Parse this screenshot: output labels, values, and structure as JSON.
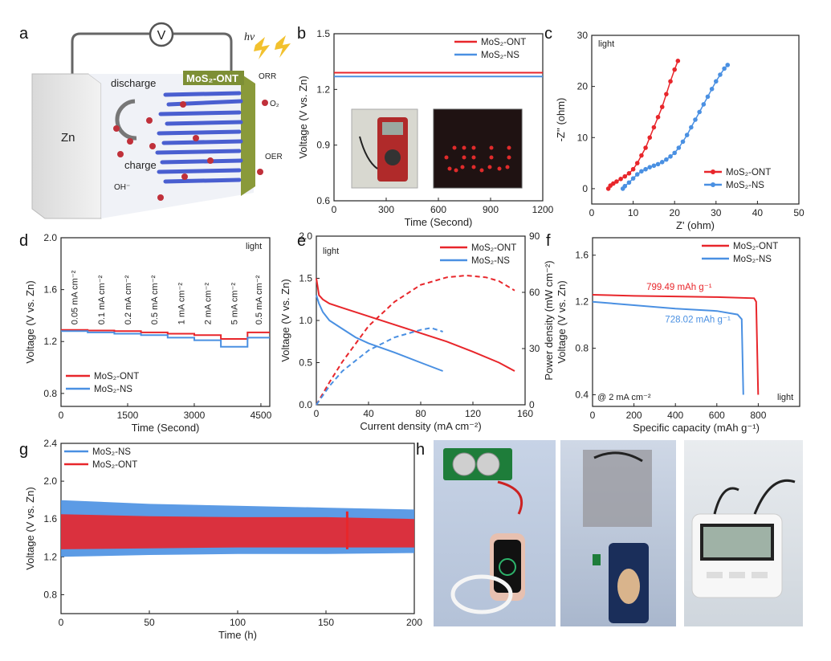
{
  "colors": {
    "ont": "#e8262b",
    "ns": "#4a90e2",
    "axis": "#222222"
  },
  "panels": {
    "a": {
      "letter": "a",
      "voltmeter": "V",
      "zn": "Zn",
      "electrode": "MoS₂-ONT",
      "light": "hν",
      "discharge": "discharge",
      "charge": "charge",
      "orr": "ORR",
      "oer": "OER",
      "o2": "O₂",
      "oh": "OH⁻"
    },
    "b": {
      "letter": "b"
    },
    "c": {
      "letter": "c"
    },
    "d": {
      "letter": "d"
    },
    "e": {
      "letter": "e"
    },
    "f": {
      "letter": "f"
    },
    "g": {
      "letter": "g"
    },
    "h": {
      "letter": "h"
    }
  },
  "chart_data": [
    {
      "id": "b",
      "type": "line",
      "xlabel": "Time (Second)",
      "ylabel": "Voltage (V vs. Zn)",
      "xlim": [
        0,
        1200
      ],
      "ylim": [
        0.6,
        1.5
      ],
      "xticks": [
        0,
        300,
        600,
        900,
        1200
      ],
      "yticks": [
        0.6,
        0.9,
        1.2,
        1.5
      ],
      "legend_position": "top-right",
      "series": [
        {
          "name": "MoS₂-ONT",
          "color": "#e8262b",
          "x": [
            0,
            1200
          ],
          "y": [
            1.29,
            1.29
          ]
        },
        {
          "name": "MoS₂-NS",
          "color": "#4a90e2",
          "x": [
            0,
            1200
          ],
          "y": [
            1.27,
            1.27
          ]
        }
      ]
    },
    {
      "id": "c",
      "type": "scatter",
      "xlabel": "Z' (ohm)",
      "ylabel": "-Z'' (ohm)",
      "xlim": [
        0,
        50
      ],
      "ylim": [
        -3,
        30
      ],
      "xticks": [
        0,
        10,
        20,
        30,
        40,
        50
      ],
      "yticks": [
        0,
        10,
        20,
        30
      ],
      "annotation": "light",
      "legend_position": "bottom-right",
      "series": [
        {
          "name": "MoS₂-ONT",
          "color": "#e8262b",
          "x": [
            4.0,
            4.5,
            5.2,
            6.0,
            7.0,
            8.0,
            9.0,
            10.0,
            11.0,
            12.0,
            13.0,
            14.0,
            15.0,
            16.0,
            17.0,
            18.0,
            19.0,
            20.0,
            20.8
          ],
          "y": [
            0.0,
            0.6,
            1.0,
            1.4,
            1.9,
            2.4,
            3.0,
            3.8,
            5.0,
            6.5,
            8.0,
            10.0,
            12.0,
            14.0,
            16.0,
            18.5,
            21.0,
            23.3,
            25.0
          ]
        },
        {
          "name": "MoS₂-NS",
          "color": "#4a90e2",
          "x": [
            7.5,
            8.0,
            9.0,
            10.0,
            11.0,
            12.0,
            13.0,
            14.0,
            15.0,
            16.0,
            17.0,
            18.0,
            19.0,
            20.0,
            21.0,
            22.0,
            23.0,
            24.0,
            25.0,
            26.0,
            27.0,
            28.0,
            29.0,
            30.0,
            31.0,
            32.0,
            32.8
          ],
          "y": [
            0.0,
            0.5,
            1.2,
            2.0,
            2.8,
            3.4,
            3.8,
            4.2,
            4.5,
            4.8,
            5.2,
            5.7,
            6.3,
            7.0,
            8.0,
            9.2,
            10.5,
            12.0,
            13.5,
            15.0,
            16.5,
            18.0,
            19.5,
            21.0,
            22.3,
            23.5,
            24.2
          ]
        }
      ]
    },
    {
      "id": "d",
      "type": "line",
      "xlabel": "Time (Second)",
      "ylabel": "Voltage (V vs. Zn)",
      "xlim": [
        0,
        4700
      ],
      "ylim": [
        0.7,
        2.0
      ],
      "xticks": [
        0,
        1500,
        3000,
        4500
      ],
      "yticks": [
        0.8,
        1.2,
        1.6,
        2.0
      ],
      "annotation": "light",
      "legend_position": "bottom-left",
      "current_labels": [
        "0.05 mA cm⁻²",
        "0.1 mA cm⁻²",
        "0.2 mA cm⁻²",
        "0.5 mA cm⁻²",
        "1 mA cm⁻²",
        "2 mA cm⁻²",
        "5 mA cm⁻²",
        "0.5 mA cm⁻²"
      ],
      "series": [
        {
          "name": "MoS₂-ONT",
          "color": "#e8262b",
          "x": [
            0,
            600,
            600,
            1200,
            1200,
            1800,
            1800,
            2400,
            2400,
            3000,
            3000,
            3600,
            3600,
            4200,
            4200,
            4700
          ],
          "y": [
            1.29,
            1.29,
            1.285,
            1.285,
            1.28,
            1.28,
            1.27,
            1.27,
            1.26,
            1.26,
            1.25,
            1.25,
            1.22,
            1.22,
            1.27,
            1.27
          ]
        },
        {
          "name": "MoS₂-NS",
          "color": "#4a90e2",
          "x": [
            0,
            600,
            600,
            1200,
            1200,
            1800,
            1800,
            2400,
            2400,
            3000,
            3000,
            3600,
            3600,
            4200,
            4200,
            4700
          ],
          "y": [
            1.28,
            1.28,
            1.27,
            1.27,
            1.26,
            1.26,
            1.25,
            1.25,
            1.23,
            1.23,
            1.21,
            1.21,
            1.16,
            1.16,
            1.23,
            1.23
          ]
        }
      ]
    },
    {
      "id": "e",
      "type": "line",
      "xlabel": "Current density (mA cm⁻²)",
      "ylabel": "Voltage (V vs. Zn)",
      "ylabel_right": "Power density (mW cm⁻²)",
      "xlim": [
        0,
        160
      ],
      "ylim": [
        0,
        2.0
      ],
      "ylim_right": [
        0,
        90
      ],
      "xticks": [
        0,
        40,
        80,
        120,
        160
      ],
      "yticks": [
        0.0,
        0.5,
        1.0,
        1.5,
        2.0
      ],
      "yticks_right": [
        0,
        30,
        60,
        90
      ],
      "annotation": "light",
      "legend_position": "top-right",
      "series": [
        {
          "name": "MoS₂-ONT",
          "color": "#e8262b",
          "axis": "left",
          "x": [
            0,
            2,
            5,
            10,
            20,
            40,
            60,
            80,
            100,
            120,
            140,
            152
          ],
          "y": [
            1.5,
            1.3,
            1.25,
            1.2,
            1.15,
            1.05,
            0.95,
            0.85,
            0.75,
            0.63,
            0.5,
            0.4
          ]
        },
        {
          "name": "MoS₂-NS",
          "color": "#4a90e2",
          "axis": "left",
          "x": [
            0,
            2,
            5,
            10,
            20,
            30,
            40,
            60,
            80,
            97
          ],
          "y": [
            1.3,
            1.2,
            1.1,
            1.0,
            0.9,
            0.8,
            0.73,
            0.62,
            0.5,
            0.4
          ]
        },
        {
          "name": "",
          "color": "#e8262b",
          "axis": "right",
          "dashed": true,
          "x": [
            0,
            10,
            20,
            40,
            60,
            80,
            100,
            115,
            130,
            140,
            152
          ],
          "y": [
            0,
            12,
            23,
            42,
            55,
            64,
            68,
            69,
            68,
            66,
            61
          ]
        },
        {
          "name": "",
          "color": "#4a90e2",
          "axis": "right",
          "dashed": true,
          "x": [
            0,
            10,
            20,
            40,
            60,
            80,
            88,
            97
          ],
          "y": [
            0,
            10,
            18,
            29,
            36,
            40,
            41,
            39
          ]
        }
      ]
    },
    {
      "id": "f",
      "type": "line",
      "xlabel": "Specific capacity (mAh g⁻¹)",
      "ylabel": "Voltage (V vs. Zn)",
      "xlim": [
        0,
        1000
      ],
      "ylim": [
        0.3,
        1.75
      ],
      "xticks": [
        0,
        200,
        400,
        600,
        800
      ],
      "yticks": [
        0.4,
        0.8,
        1.2,
        1.6
      ],
      "annotations": [
        "799.49 mAh g⁻¹",
        "728.02 mAh g⁻¹",
        "@ 2 mA cm⁻²",
        "light"
      ],
      "legend_position": "top-right",
      "series": [
        {
          "name": "MoS₂-ONT",
          "color": "#e8262b",
          "x": [
            0,
            200,
            400,
            600,
            780,
            790,
            799.5
          ],
          "y": [
            1.26,
            1.25,
            1.245,
            1.24,
            1.23,
            1.2,
            0.4
          ]
        },
        {
          "name": "MoS₂-NS",
          "color": "#4a90e2",
          "x": [
            0,
            200,
            400,
            600,
            700,
            720,
            728
          ],
          "y": [
            1.2,
            1.17,
            1.14,
            1.12,
            1.09,
            1.05,
            0.4
          ]
        }
      ]
    },
    {
      "id": "g",
      "type": "area",
      "xlabel": "Time (h)",
      "ylabel": "Voltage (V vs. Zn)",
      "xlim": [
        0,
        200
      ],
      "ylim": [
        0.6,
        2.4
      ],
      "xticks": [
        0,
        50,
        100,
        150,
        200
      ],
      "yticks": [
        0.8,
        1.2,
        1.6,
        2.0,
        2.4
      ],
      "legend_position": "top-left",
      "series": [
        {
          "name": "MoS₂-NS",
          "color": "#4a90e2",
          "x": [
            0,
            50,
            100,
            150,
            200
          ],
          "y_upper": [
            1.8,
            1.76,
            1.74,
            1.72,
            1.7
          ],
          "y_lower": [
            1.2,
            1.22,
            1.23,
            1.23,
            1.24
          ]
        },
        {
          "name": "MoS₂-ONT",
          "color": "#e8262b",
          "x": [
            0,
            50,
            100,
            150,
            200
          ],
          "y_upper": [
            1.65,
            1.63,
            1.62,
            1.62,
            1.6
          ],
          "y_lower": [
            1.28,
            1.29,
            1.3,
            1.3,
            1.3
          ]
        }
      ]
    }
  ]
}
